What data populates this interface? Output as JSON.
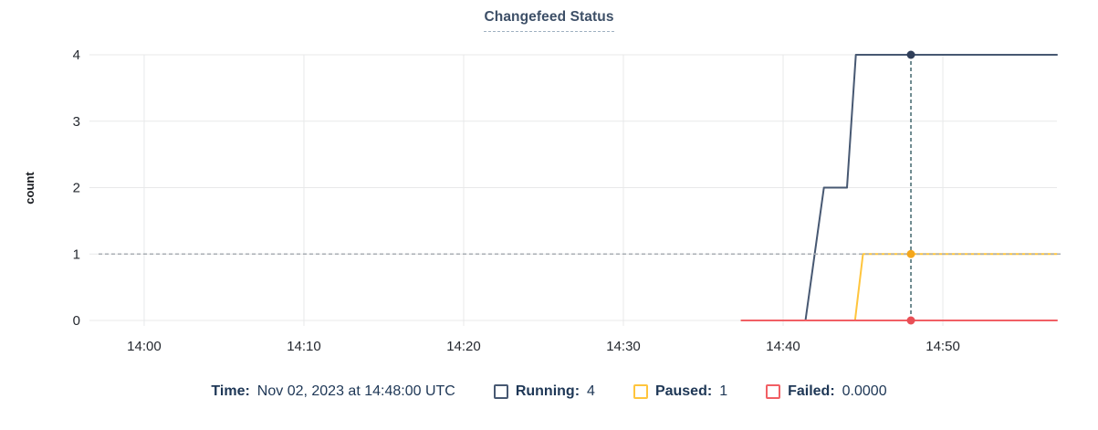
{
  "title": "Changefeed Status",
  "legend": {
    "time_label": "Time:",
    "time_value": "Nov 02, 2023 at 14:48:00 UTC",
    "items": [
      {
        "label": "Running:",
        "value": "4",
        "color": "#475872"
      },
      {
        "label": "Paused:",
        "value": "1",
        "color": "#ffc53d"
      },
      {
        "label": "Failed:",
        "value": "0.0000",
        "color": "#f15f64"
      }
    ]
  },
  "chart_data": {
    "type": "line",
    "title": "Changefeed Status",
    "xlabel": "",
    "ylabel": "count",
    "x_unit": "minutes after 14:00",
    "xlim": [
      -2.74,
      57.14
    ],
    "ylim": [
      0,
      4
    ],
    "yticks": [
      0,
      1,
      2,
      3,
      4
    ],
    "xticks": [
      {
        "x": 0,
        "label": "14:00"
      },
      {
        "x": 10,
        "label": "14:10"
      },
      {
        "x": 20,
        "label": "14:20"
      },
      {
        "x": 30,
        "label": "14:30"
      },
      {
        "x": 40,
        "label": "14:40"
      },
      {
        "x": 50,
        "label": "14:50"
      }
    ],
    "grid": true,
    "legend_position": "bottom",
    "series": [
      {
        "name": "Running",
        "color": "#475872",
        "dot_color": "#2f3e59",
        "points": [
          [
            37.4,
            0
          ],
          [
            41.4,
            0
          ],
          [
            42.55,
            2
          ],
          [
            44.0,
            2
          ],
          [
            44.55,
            4
          ],
          [
            57.14,
            4
          ]
        ]
      },
      {
        "name": "Paused",
        "color": "#ffc53d",
        "dot_color": "#f5a71c",
        "points": [
          [
            37.4,
            0
          ],
          [
            44.5,
            0
          ],
          [
            45.0,
            1
          ],
          [
            57.14,
            1
          ]
        ]
      },
      {
        "name": "Failed",
        "color": "#f15f64",
        "dot_color": "#e94f56",
        "points": [
          [
            37.4,
            0
          ],
          [
            57.14,
            0
          ]
        ]
      }
    ],
    "crosshair": {
      "x": 48,
      "time": "Nov 02, 2023 at 14:48:00 UTC",
      "values": {
        "Running": 4,
        "Paused": 1,
        "Failed": 0
      },
      "guide_y": 1,
      "color": "#41666c",
      "guide_color": "#a9aeb4"
    }
  }
}
